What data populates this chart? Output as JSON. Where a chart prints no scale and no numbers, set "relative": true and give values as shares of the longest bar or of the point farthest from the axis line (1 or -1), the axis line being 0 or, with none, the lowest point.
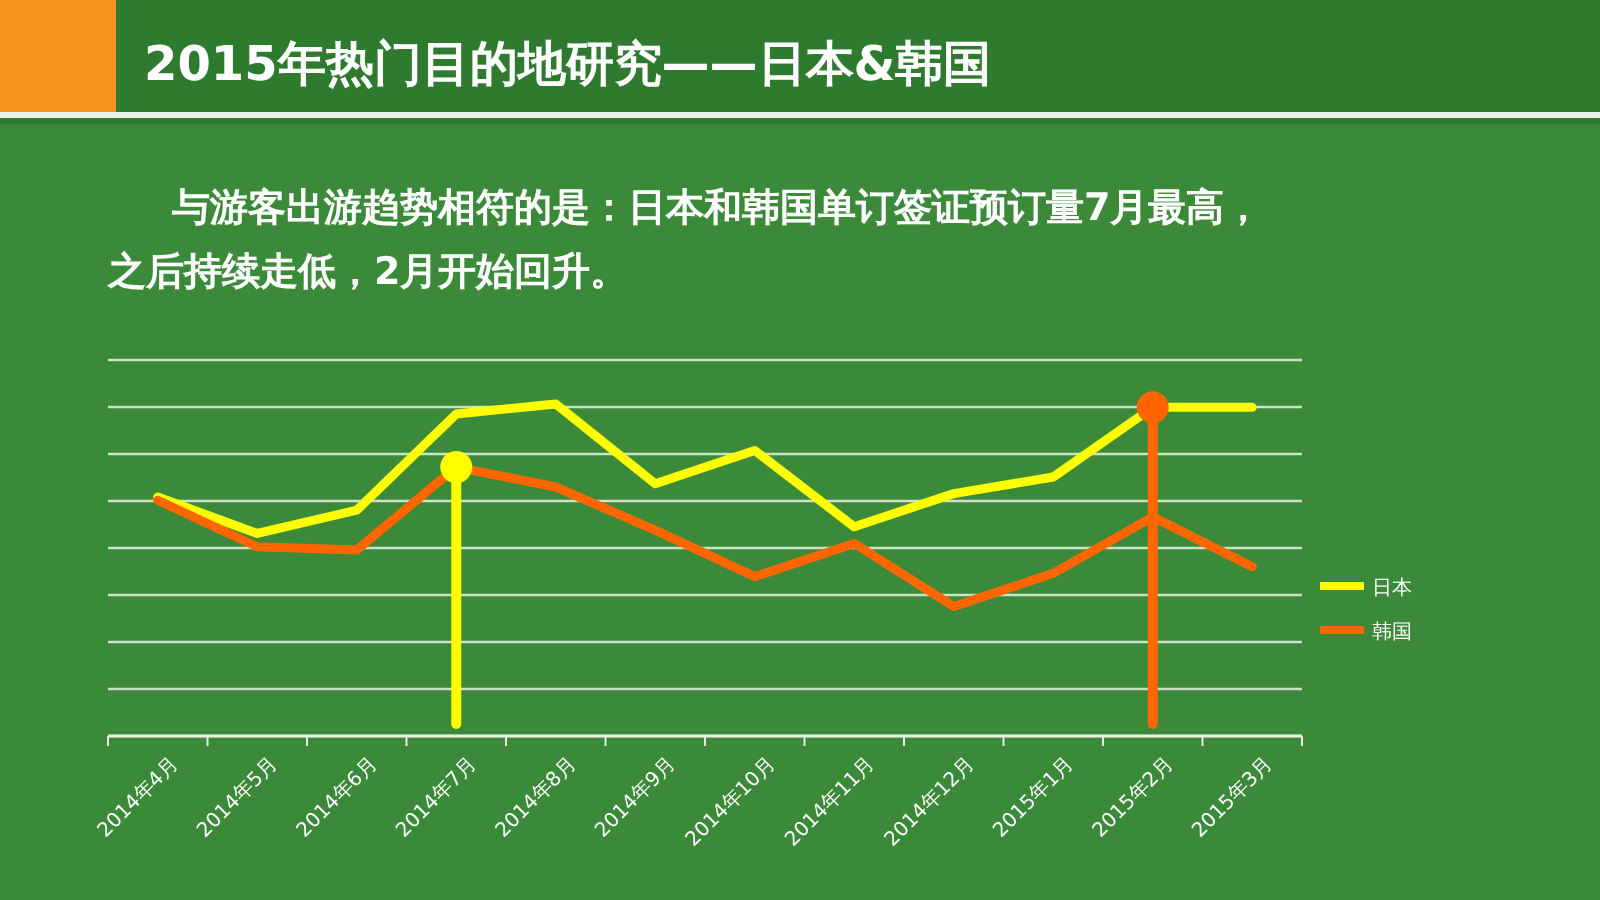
{
  "chart_data": {
    "type": "line",
    "title": "2015年热门目的地研究——日本&韩国",
    "subtitle": "与游客出游趋势相符的是：日本和韩国单订签证预订量7月最高，之后持续走低，2月开始回升。",
    "categories": [
      "2014年4月",
      "2014年5月",
      "2014年6月",
      "2014年7月",
      "2014年8月",
      "2014年9月",
      "2014年10月",
      "2014年11月",
      "2014年12月",
      "2015年1月",
      "2015年2月",
      "2015年3月"
    ],
    "relative": true,
    "grid": true,
    "legend": "right",
    "series": [
      {
        "name": "日本",
        "color": "#ffff00",
        "values": [
          0.72,
          0.61,
          0.68,
          0.97,
          1,
          0.76,
          0.86,
          0.63,
          0.73,
          0.78,
          0.99,
          0.99
        ]
      },
      {
        "name": "韩国",
        "color": "#ff6600",
        "values": [
          0.71,
          0.57,
          0.56,
          0.81,
          0.75,
          0.62,
          0.48,
          0.58,
          0.39,
          0.49,
          0.66,
          0.51
        ]
      }
    ],
    "ref_lines": [
      {
        "axis": "x",
        "value": "2014年7月",
        "color": "#ffff00"
      },
      {
        "axis": "x",
        "value": "2015年2月",
        "color": "#ff6600"
      }
    ]
  }
}
